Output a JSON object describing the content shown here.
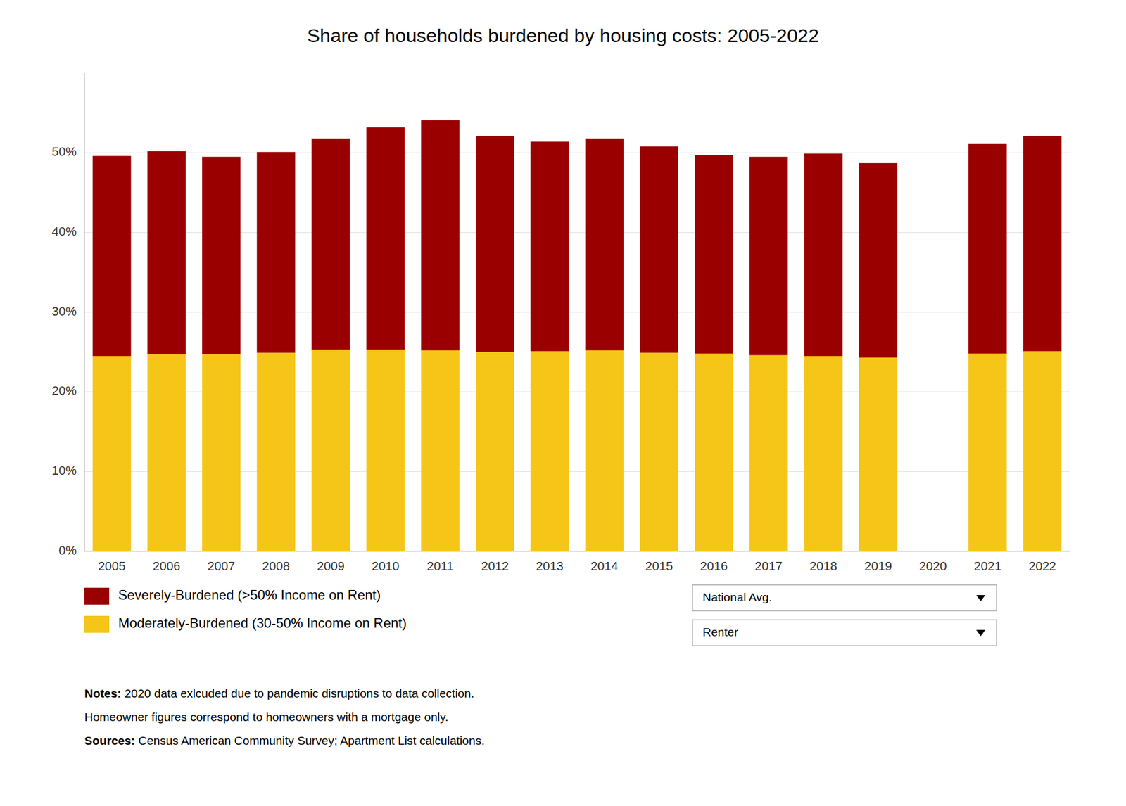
{
  "chart_data": {
    "type": "bar",
    "stacked": true,
    "grid": true,
    "title": "Share of households burdened by housing costs: 2005-2022",
    "categories": [
      "2005",
      "2006",
      "2007",
      "2008",
      "2009",
      "2010",
      "2011",
      "2012",
      "2013",
      "2014",
      "2015",
      "2016",
      "2017",
      "2018",
      "2019",
      "2020",
      "2021",
      "2022"
    ],
    "series": [
      {
        "name": "Moderately-Burdened (30-50% Income on Rent)",
        "color": "#F5C518",
        "values": [
          24.5,
          24.7,
          24.7,
          24.9,
          25.3,
          25.3,
          25.2,
          25.0,
          25.1,
          25.2,
          24.9,
          24.8,
          24.6,
          24.5,
          24.3,
          null,
          24.8,
          25.1
        ]
      },
      {
        "name": "Severely-Burdened (>50% Income on Rent)",
        "color": "#9B0000",
        "values": [
          25.1,
          25.5,
          24.8,
          25.2,
          26.5,
          27.9,
          28.9,
          27.1,
          26.3,
          26.6,
          25.9,
          24.9,
          24.9,
          25.4,
          24.4,
          null,
          26.3,
          27.0
        ]
      }
    ],
    "ylim": [
      0,
      60
    ],
    "yticks": [
      {
        "value": 0,
        "label": "0%"
      },
      {
        "value": 10,
        "label": "10%"
      },
      {
        "value": 20,
        "label": "20%"
      },
      {
        "value": 30,
        "label": "30%"
      },
      {
        "value": 40,
        "label": "40%"
      },
      {
        "value": 50,
        "label": "50%"
      }
    ],
    "dropdowns": [
      "National Avg.",
      "Renter"
    ],
    "annotations": [
      "Notes: 2020 data exlcuded due to pandemic disruptions to data collection.",
      "Homeowner figures correspond to homeowners with a mortgage only.",
      "Sources: Census American Community Survey; Apartment List calculations."
    ]
  }
}
